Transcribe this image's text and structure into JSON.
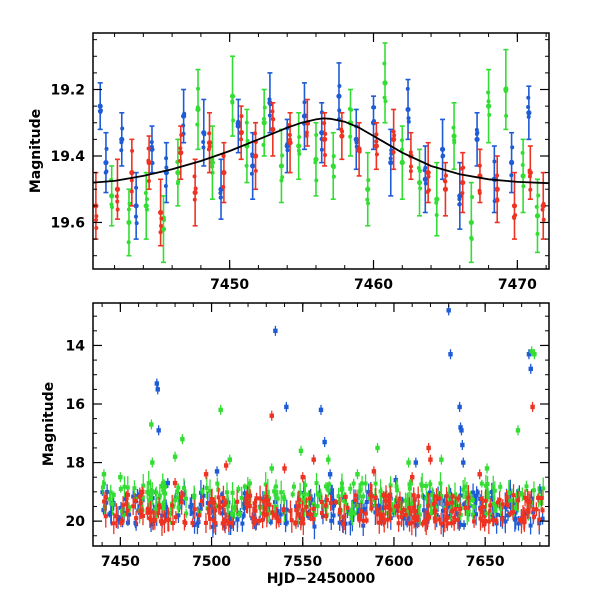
{
  "chart_data": [
    {
      "type": "scatter",
      "title": "",
      "xlabel": "",
      "ylabel": "Magnitude",
      "xlim": [
        7440.5,
        7472.2
      ],
      "ylim": [
        19.74,
        19.03
      ],
      "y_inverted": true,
      "x_ticks": [
        7450,
        7460,
        7470
      ],
      "y_ticks": [
        19.2,
        19.4,
        19.6
      ],
      "grid": false,
      "legend": "none",
      "model_curve": {
        "color": "#000000",
        "x": [
          7440.5,
          7442,
          7444,
          7446,
          7448,
          7450,
          7452,
          7454,
          7455,
          7456,
          7456.5,
          7457,
          7458,
          7459,
          7460,
          7462,
          7464,
          7466,
          7468,
          7470,
          7472.2
        ],
        "y": [
          19.48,
          19.475,
          19.46,
          19.44,
          19.415,
          19.385,
          19.35,
          19.315,
          19.3,
          19.29,
          19.287,
          19.288,
          19.297,
          19.315,
          19.34,
          19.39,
          19.43,
          19.455,
          19.47,
          19.478,
          19.482
        ]
      },
      "series": [
        {
          "color": "#1e5bd6",
          "points": [
            {
              "x": 7441.0,
              "y": 19.25,
              "err": 0.07
            },
            {
              "x": 7441.4,
              "y": 19.42,
              "err": 0.09
            },
            {
              "x": 7442.5,
              "y": 19.35,
              "err": 0.08
            },
            {
              "x": 7443.5,
              "y": 19.55,
              "err": 0.1
            },
            {
              "x": 7444.6,
              "y": 19.38,
              "err": 0.07
            },
            {
              "x": 7445.6,
              "y": 19.45,
              "err": 0.09
            },
            {
              "x": 7446.8,
              "y": 19.28,
              "err": 0.08
            },
            {
              "x": 7448.2,
              "y": 19.33,
              "err": 0.1
            },
            {
              "x": 7449.4,
              "y": 19.5,
              "err": 0.09
            },
            {
              "x": 7450.6,
              "y": 19.31,
              "err": 0.08
            },
            {
              "x": 7451.6,
              "y": 19.43,
              "err": 0.1
            },
            {
              "x": 7452.8,
              "y": 19.24,
              "err": 0.09
            },
            {
              "x": 7454.0,
              "y": 19.37,
              "err": 0.08
            },
            {
              "x": 7455.2,
              "y": 19.28,
              "err": 0.1
            },
            {
              "x": 7456.4,
              "y": 19.33,
              "err": 0.09
            },
            {
              "x": 7457.6,
              "y": 19.22,
              "err": 0.1
            },
            {
              "x": 7458.8,
              "y": 19.35,
              "err": 0.09
            },
            {
              "x": 7460.0,
              "y": 19.3,
              "err": 0.08
            },
            {
              "x": 7461.2,
              "y": 19.42,
              "err": 0.1
            },
            {
              "x": 7462.4,
              "y": 19.26,
              "err": 0.09
            },
            {
              "x": 7463.6,
              "y": 19.47,
              "err": 0.1
            },
            {
              "x": 7464.8,
              "y": 19.38,
              "err": 0.09
            },
            {
              "x": 7466.0,
              "y": 19.52,
              "err": 0.1
            },
            {
              "x": 7467.2,
              "y": 19.35,
              "err": 0.08
            },
            {
              "x": 7468.4,
              "y": 19.47,
              "err": 0.1
            },
            {
              "x": 7469.6,
              "y": 19.42,
              "err": 0.09
            },
            {
              "x": 7470.8,
              "y": 19.27,
              "err": 0.08
            }
          ]
        },
        {
          "color": "#33dd33",
          "points": [
            {
              "x": 7441.8,
              "y": 19.52,
              "err": 0.09
            },
            {
              "x": 7443.0,
              "y": 19.6,
              "err": 0.1
            },
            {
              "x": 7444.2,
              "y": 19.55,
              "err": 0.1
            },
            {
              "x": 7445.4,
              "y": 19.62,
              "err": 0.1
            },
            {
              "x": 7446.4,
              "y": 19.45,
              "err": 0.1
            },
            {
              "x": 7447.8,
              "y": 19.26,
              "err": 0.12
            },
            {
              "x": 7448.8,
              "y": 19.42,
              "err": 0.11
            },
            {
              "x": 7450.2,
              "y": 19.22,
              "err": 0.12
            },
            {
              "x": 7451.2,
              "y": 19.37,
              "err": 0.11
            },
            {
              "x": 7452.4,
              "y": 19.3,
              "err": 0.1
            },
            {
              "x": 7453.6,
              "y": 19.43,
              "err": 0.11
            },
            {
              "x": 7454.8,
              "y": 19.37,
              "err": 0.1
            },
            {
              "x": 7456.0,
              "y": 19.41,
              "err": 0.11
            },
            {
              "x": 7457.2,
              "y": 19.43,
              "err": 0.1
            },
            {
              "x": 7458.4,
              "y": 19.3,
              "err": 0.1
            },
            {
              "x": 7459.6,
              "y": 19.5,
              "err": 0.11
            },
            {
              "x": 7460.8,
              "y": 19.18,
              "err": 0.12
            },
            {
              "x": 7462.0,
              "y": 19.42,
              "err": 0.11
            },
            {
              "x": 7463.2,
              "y": 19.48,
              "err": 0.1
            },
            {
              "x": 7464.4,
              "y": 19.53,
              "err": 0.11
            },
            {
              "x": 7465.6,
              "y": 19.34,
              "err": 0.1
            },
            {
              "x": 7466.8,
              "y": 19.6,
              "err": 0.12
            },
            {
              "x": 7468.0,
              "y": 19.25,
              "err": 0.11
            },
            {
              "x": 7469.2,
              "y": 19.2,
              "err": 0.12
            },
            {
              "x": 7470.4,
              "y": 19.46,
              "err": 0.11
            },
            {
              "x": 7471.4,
              "y": 19.58,
              "err": 0.11
            }
          ]
        },
        {
          "color": "#ee3322",
          "points": [
            {
              "x": 7440.7,
              "y": 19.55,
              "err": 0.1
            },
            {
              "x": 7442.2,
              "y": 19.5,
              "err": 0.09
            },
            {
              "x": 7443.2,
              "y": 19.45,
              "err": 0.1
            },
            {
              "x": 7444.4,
              "y": 19.42,
              "err": 0.08
            },
            {
              "x": 7445.2,
              "y": 19.57,
              "err": 0.1
            },
            {
              "x": 7446.6,
              "y": 19.39,
              "err": 0.08
            },
            {
              "x": 7447.6,
              "y": 19.51,
              "err": 0.1
            },
            {
              "x": 7448.6,
              "y": 19.36,
              "err": 0.09
            },
            {
              "x": 7449.6,
              "y": 19.45,
              "err": 0.09
            },
            {
              "x": 7450.8,
              "y": 19.33,
              "err": 0.08
            },
            {
              "x": 7451.8,
              "y": 19.4,
              "err": 0.1
            },
            {
              "x": 7453.0,
              "y": 19.32,
              "err": 0.08
            },
            {
              "x": 7454.2,
              "y": 19.36,
              "err": 0.09
            },
            {
              "x": 7455.4,
              "y": 19.3,
              "err": 0.07
            },
            {
              "x": 7456.6,
              "y": 19.35,
              "err": 0.08
            },
            {
              "x": 7457.8,
              "y": 19.34,
              "err": 0.07
            },
            {
              "x": 7459.0,
              "y": 19.38,
              "err": 0.08
            },
            {
              "x": 7460.2,
              "y": 19.37,
              "err": 0.07
            },
            {
              "x": 7461.4,
              "y": 19.35,
              "err": 0.09
            },
            {
              "x": 7462.6,
              "y": 19.4,
              "err": 0.07
            },
            {
              "x": 7463.8,
              "y": 19.45,
              "err": 0.09
            },
            {
              "x": 7465.0,
              "y": 19.5,
              "err": 0.08
            },
            {
              "x": 7466.2,
              "y": 19.48,
              "err": 0.09
            },
            {
              "x": 7467.4,
              "y": 19.46,
              "err": 0.08
            },
            {
              "x": 7468.6,
              "y": 19.5,
              "err": 0.1
            },
            {
              "x": 7469.8,
              "y": 19.55,
              "err": 0.1
            },
            {
              "x": 7470.9,
              "y": 19.45,
              "err": 0.08
            },
            {
              "x": 7471.8,
              "y": 19.55,
              "err": 0.1
            }
          ]
        }
      ]
    },
    {
      "type": "scatter",
      "title": "",
      "xlabel": "HJD−2450000",
      "ylabel": "Magnitude",
      "xlim": [
        7435,
        7685
      ],
      "ylim": [
        20.85,
        12.55
      ],
      "y_inverted": true,
      "x_ticks": [
        7450,
        7500,
        7550,
        7600,
        7650
      ],
      "y_ticks": [
        14,
        16,
        18,
        20
      ],
      "grid": false,
      "legend": "none",
      "series": [
        {
          "color": "#1e5bd6",
          "band_x": [
            7440,
            7682
          ],
          "band_y": [
            19.0,
            20.2
          ],
          "outliers": [
            {
              "x": 7470,
              "y": 15.3
            },
            {
              "x": 7470.5,
              "y": 15.5
            },
            {
              "x": 7471,
              "y": 16.9
            },
            {
              "x": 7476,
              "y": 18.7
            },
            {
              "x": 7503,
              "y": 18.3
            },
            {
              "x": 7535,
              "y": 13.5
            },
            {
              "x": 7541,
              "y": 16.1
            },
            {
              "x": 7560,
              "y": 16.2
            },
            {
              "x": 7562,
              "y": 17.3
            },
            {
              "x": 7565,
              "y": 18.4
            },
            {
              "x": 7601,
              "y": 18.6
            },
            {
              "x": 7612,
              "y": 18.0
            },
            {
              "x": 7630,
              "y": 12.8
            },
            {
              "x": 7631,
              "y": 14.3
            },
            {
              "x": 7636,
              "y": 16.1
            },
            {
              "x": 7636.5,
              "y": 16.8
            },
            {
              "x": 7637,
              "y": 16.9
            },
            {
              "x": 7637.5,
              "y": 17.4
            },
            {
              "x": 7638,
              "y": 18.0
            },
            {
              "x": 7674,
              "y": 14.3
            },
            {
              "x": 7675,
              "y": 14.8
            },
            {
              "x": 7680,
              "y": 18.9
            }
          ]
        },
        {
          "color": "#33dd33",
          "band_x": [
            7440,
            7682
          ],
          "band_y": [
            18.7,
            19.8
          ],
          "outliers": [
            {
              "x": 7441,
              "y": 18.4
            },
            {
              "x": 7450,
              "y": 18.5
            },
            {
              "x": 7467,
              "y": 16.7
            },
            {
              "x": 7467.5,
              "y": 18.0
            },
            {
              "x": 7480,
              "y": 17.8
            },
            {
              "x": 7484,
              "y": 17.2
            },
            {
              "x": 7505,
              "y": 16.2
            },
            {
              "x": 7510,
              "y": 17.9
            },
            {
              "x": 7533,
              "y": 18.2
            },
            {
              "x": 7549,
              "y": 17.6
            },
            {
              "x": 7564,
              "y": 17.9
            },
            {
              "x": 7580,
              "y": 18.4
            },
            {
              "x": 7591,
              "y": 17.5
            },
            {
              "x": 7608,
              "y": 18.0
            },
            {
              "x": 7626,
              "y": 17.9
            },
            {
              "x": 7651,
              "y": 18.2
            },
            {
              "x": 7668,
              "y": 16.9
            },
            {
              "x": 7675.5,
              "y": 14.2
            },
            {
              "x": 7677,
              "y": 14.3
            }
          ]
        },
        {
          "color": "#ee3322",
          "band_x": [
            7440,
            7682
          ],
          "band_y": [
            19.1,
            20.1
          ],
          "outliers": [
            {
              "x": 7462,
              "y": 19.0
            },
            {
              "x": 7480,
              "y": 18.7
            },
            {
              "x": 7497,
              "y": 18.4
            },
            {
              "x": 7508,
              "y": 18.1
            },
            {
              "x": 7533,
              "y": 16.4
            },
            {
              "x": 7540,
              "y": 18.2
            },
            {
              "x": 7550,
              "y": 18.5
            },
            {
              "x": 7556,
              "y": 17.9
            },
            {
              "x": 7589,
              "y": 18.3
            },
            {
              "x": 7610,
              "y": 18.5
            },
            {
              "x": 7619,
              "y": 17.5
            },
            {
              "x": 7620,
              "y": 17.9
            },
            {
              "x": 7647,
              "y": 18.4
            },
            {
              "x": 7676,
              "y": 16.1
            }
          ]
        }
      ]
    }
  ]
}
